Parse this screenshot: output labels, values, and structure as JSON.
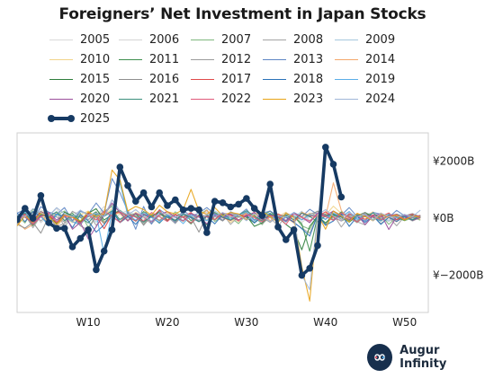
{
  "title": "Foreigners’ Net Investment in Japan Stocks",
  "brand": {
    "name": "Augur Infinity",
    "logo_icon": "infinity-icon"
  },
  "chart_data": {
    "type": "line",
    "title": "Foreigners’ Net Investment in Japan Stocks",
    "xlabel": "",
    "ylabel": "",
    "x_range": [
      1,
      53
    ],
    "ylim": [
      -3300,
      3000
    ],
    "x_ticks": [
      {
        "value": 10,
        "label": "W10"
      },
      {
        "value": 20,
        "label": "W20"
      },
      {
        "value": 30,
        "label": "W30"
      },
      {
        "value": 40,
        "label": "W40"
      },
      {
        "value": 50,
        "label": "W50"
      }
    ],
    "y_ticks": [
      {
        "value": 2000,
        "label": "¥2000B"
      },
      {
        "value": 0,
        "label": "¥0B"
      },
      {
        "value": -2000,
        "label": "¥−2000B"
      }
    ],
    "y_axis_position": "right",
    "grid": false,
    "legend_position": "top",
    "legend_columns": 5,
    "highlight_series": "2025",
    "series": [
      {
        "name": "2005",
        "color": "#d9d9d9",
        "values": [
          120,
          260,
          -90,
          300,
          150,
          40,
          -80,
          220,
          180,
          -60,
          90,
          310,
          140,
          -40,
          260,
          120,
          -30,
          180,
          70,
          240,
          -50,
          90,
          130,
          -70,
          200,
          60,
          -20,
          150,
          40,
          230,
          80,
          -60,
          110,
          170,
          30,
          -90,
          60,
          140,
          -10,
          200,
          90,
          40,
          250,
          -30,
          120,
          70,
          180,
          -50,
          100,
          60,
          20,
          110
        ]
      },
      {
        "name": "2006",
        "color": "#d4d4d4",
        "values": [
          -100,
          180,
          220,
          -150,
          90,
          350,
          -60,
          100,
          -200,
          140,
          60,
          420,
          -80,
          160,
          280,
          -120,
          70,
          30,
          190,
          -90,
          140,
          60,
          -160,
          90,
          230,
          -40,
          120,
          -80,
          50,
          190,
          -130,
          80,
          20,
          160,
          -60,
          110,
          -140,
          70,
          180,
          -30,
          260,
          -90,
          40,
          150,
          -70,
          100,
          30,
          -110,
          60,
          140,
          -20,
          80
        ]
      },
      {
        "name": "2007",
        "color": "#7fb77e",
        "values": [
          80,
          -160,
          320,
          140,
          -240,
          110,
          260,
          -90,
          180,
          -310,
          60,
          240,
          420,
          -130,
          190,
          80,
          -200,
          150,
          60,
          -90,
          230,
          40,
          -150,
          120,
          300,
          -110,
          90,
          30,
          -180,
          140,
          70,
          -220,
          160,
          40,
          -120,
          90,
          -260,
          -380,
          110,
          -200,
          60,
          -90,
          30,
          -150,
          80,
          -40,
          120,
          -210,
          50,
          -80,
          20,
          -60
        ]
      },
      {
        "name": "2008",
        "color": "#a3a3a3",
        "values": [
          -250,
          120,
          -330,
          90,
          -180,
          210,
          -290,
          60,
          -120,
          170,
          -240,
          80,
          260,
          -150,
          40,
          190,
          -200,
          110,
          -90,
          60,
          -180,
          140,
          30,
          -110,
          90,
          -60,
          160,
          -210,
          70,
          -40,
          120,
          -190,
          50,
          -280,
          90,
          -160,
          -340,
          -520,
          80,
          -240,
          140,
          -300,
          60,
          -120,
          -230,
          90,
          -180,
          40,
          -260,
          70,
          -90,
          30
        ]
      },
      {
        "name": "2009",
        "color": "#a5c8dd",
        "values": [
          -190,
          80,
          -140,
          220,
          60,
          -100,
          170,
          -60,
          240,
          110,
          -130,
          70,
          190,
          280,
          -40,
          150,
          80,
          -120,
          210,
          60,
          130,
          -70,
          180,
          40,
          -90,
          260,
          110,
          -30,
          140,
          70,
          -60,
          200,
          90,
          -110,
          160,
          30,
          250,
          -80,
          140,
          60,
          -40,
          180,
          90,
          -20,
          130,
          210,
          60,
          -90,
          150,
          40,
          120,
          70
        ]
      },
      {
        "name": "2010",
        "color": "#f2d48a",
        "values": [
          60,
          -120,
          230,
          90,
          -60,
          180,
          40,
          -150,
          120,
          260,
          -40,
          90,
          340,
          150,
          -90,
          220,
          60,
          130,
          -70,
          190,
          40,
          -110,
          160,
          80,
          -50,
          210,
          100,
          -140,
          70,
          180,
          30,
          -90,
          140,
          60,
          220,
          -80,
          40,
          190,
          -60,
          110,
          430,
          170,
          -30,
          120,
          60,
          230,
          -90,
          80,
          150,
          -40,
          90,
          50
        ]
      },
      {
        "name": "2011",
        "color": "#3f8f4f",
        "values": [
          90,
          150,
          -80,
          240,
          120,
          -200,
          70,
          180,
          -110,
          60,
          230,
          -140,
          80,
          1350,
          160,
          -90,
          240,
          60,
          -170,
          130,
          40,
          210,
          -80,
          110,
          -230,
          70,
          190,
          -60,
          140,
          30,
          -150,
          90,
          260,
          -40,
          120,
          60,
          -190,
          -1150,
          80,
          150,
          -60,
          230,
          40,
          -110,
          180,
          70,
          -90,
          140,
          20,
          -70,
          110,
          40
        ]
      },
      {
        "name": "2012",
        "color": "#9b9b9b",
        "values": [
          -60,
          140,
          210,
          -90,
          160,
          60,
          -130,
          250,
          80,
          -40,
          190,
          120,
          480,
          230,
          -80,
          150,
          40,
          -190,
          110,
          70,
          -60,
          180,
          30,
          -120,
          90,
          140,
          -70,
          210,
          60,
          -30,
          170,
          40,
          -140,
          80,
          120,
          -60,
          190,
          50,
          260,
          110,
          -40,
          160,
          80,
          -90,
          200,
          60,
          30,
          140,
          -50,
          90,
          170,
          40
        ]
      },
      {
        "name": "2013",
        "color": "#5f86c4",
        "values": [
          180,
          320,
          -60,
          410,
          220,
          140,
          380,
          -90,
          260,
          150,
          540,
          180,
          1400,
          900,
          260,
          -380,
          420,
          -200,
          310,
          120,
          -150,
          280,
          70,
          190,
          380,
          140,
          -80,
          230,
          110,
          330,
          -60,
          180,
          260,
          90,
          -120,
          210,
          60,
          320,
          140,
          -40,
          250,
          110,
          380,
          60,
          -90,
          210,
          150,
          40,
          280,
          90,
          130,
          60
        ]
      },
      {
        "name": "2014",
        "color": "#f4a86b",
        "values": [
          -140,
          -380,
          -220,
          90,
          -160,
          -290,
          60,
          -110,
          -230,
          120,
          40,
          -150,
          90,
          210,
          -70,
          160,
          40,
          -120,
          110,
          230,
          60,
          -90,
          180,
          40,
          290,
          -50,
          140,
          90,
          -110,
          200,
          60,
          170,
          -80,
          130,
          40,
          -160,
          220,
          90,
          140,
          60,
          1250,
          280,
          -40,
          160,
          90,
          -70,
          190,
          40,
          -120,
          110,
          60,
          -30
        ]
      },
      {
        "name": "2015",
        "color": "#2e7d3b",
        "values": [
          -90,
          160,
          -250,
          110,
          60,
          -180,
          220,
          90,
          -140,
          180,
          340,
          -60,
          130,
          280,
          90,
          160,
          -110,
          60,
          230,
          -80,
          140,
          40,
          -190,
          110,
          70,
          -40,
          180,
          130,
          -60,
          90,
          -280,
          -160,
          120,
          40,
          -210,
          -420,
          -1100,
          -280,
          80,
          -160,
          110,
          60,
          -130,
          90,
          210,
          40,
          -90,
          130,
          60,
          -40,
          110,
          80
        ]
      },
      {
        "name": "2016",
        "color": "#8f8f8f",
        "values": [
          -210,
          -340,
          -140,
          -520,
          60,
          -290,
          -180,
          90,
          -260,
          -410,
          120,
          -190,
          60,
          -130,
          80,
          160,
          -240,
          90,
          -70,
          140,
          -120,
          60,
          30,
          -480,
          110,
          70,
          -90,
          160,
          40,
          220,
          -60,
          130,
          80,
          -110,
          190,
          60,
          -40,
          150,
          240,
          90,
          180,
          -30,
          120,
          60,
          210,
          -80,
          140,
          40,
          -60,
          90,
          20,
          60
        ]
      },
      {
        "name": "2017",
        "color": "#e04a4a",
        "values": [
          40,
          160,
          -80,
          230,
          110,
          -140,
          90,
          60,
          -190,
          180,
          70,
          -360,
          130,
          240,
          60,
          -90,
          150,
          30,
          290,
          -60,
          120,
          40,
          210,
          -110,
          80,
          170,
          30,
          -70,
          140,
          60,
          220,
          -40,
          90,
          150,
          30,
          -120,
          180,
          90,
          60,
          230,
          40,
          -90,
          160,
          70,
          -30,
          120,
          60,
          190,
          -50,
          80,
          140,
          30
        ]
      },
      {
        "name": "2018",
        "color": "#2a72b8",
        "values": [
          190,
          -120,
          240,
          60,
          -210,
          150,
          80,
          -330,
          130,
          -90,
          -480,
          -230,
          260,
          -140,
          70,
          -210,
          120,
          40,
          -150,
          90,
          -80,
          160,
          30,
          -110,
          60,
          -190,
          140,
          40,
          -70,
          110,
          -160,
          60,
          180,
          -90,
          40,
          -130,
          -360,
          -620,
          120,
          -240,
          -90,
          160,
          -280,
          60,
          -140,
          90,
          -210,
          40,
          -110,
          70,
          -50,
          30
        ]
      },
      {
        "name": "2019",
        "color": "#5aaee8",
        "values": [
          -110,
          230,
          -180,
          80,
          -270,
          140,
          60,
          -120,
          -210,
          90,
          160,
          -1250,
          240,
          1250,
          110,
          -60,
          190,
          40,
          -140,
          110,
          60,
          -180,
          130,
          40,
          -70,
          160,
          90,
          -40,
          120,
          230,
          -80,
          70,
          150,
          -110,
          40,
          190,
          -60,
          120,
          80,
          -30,
          170,
          60,
          240,
          -40,
          110,
          60,
          -90,
          150,
          30,
          90,
          40,
          60
        ]
      },
      {
        "name": "2020",
        "color": "#9b4f9b",
        "values": [
          120,
          40,
          -160,
          90,
          210,
          -60,
          140,
          -380,
          -140,
          -720,
          -290,
          160,
          540,
          210,
          -90,
          180,
          60,
          -120,
          130,
          240,
          40,
          -90,
          170,
          60,
          -190,
          110,
          30,
          150,
          -60,
          90,
          210,
          -40,
          130,
          60,
          -80,
          170,
          40,
          -150,
          190,
          90,
          260,
          60,
          -40,
          140,
          -220,
          90,
          160,
          -390,
          60,
          110,
          -70,
          40
        ]
      },
      {
        "name": "2021",
        "color": "#3c8f7d",
        "values": [
          70,
          190,
          -110,
          140,
          60,
          230,
          -80,
          110,
          40,
          -160,
          150,
          80,
          270,
          -40,
          130,
          60,
          -130,
          90,
          180,
          30,
          -70,
          140,
          60,
          -110,
          90,
          210,
          40,
          -60,
          120,
          270,
          80,
          -90,
          160,
          40,
          110,
          -50,
          190,
          70,
          -120,
          90,
          150,
          40,
          -80,
          120,
          60,
          190,
          -30,
          90,
          150,
          40,
          -60,
          110
        ]
      },
      {
        "name": "2022",
        "color": "#e05a7a",
        "values": [
          -90,
          140,
          -210,
          60,
          180,
          -130,
          90,
          40,
          -170,
          120,
          -60,
          250,
          80,
          -140,
          160,
          40,
          -90,
          210,
          60,
          -110,
          140,
          30,
          -160,
          90,
          60,
          -40,
          190,
          110,
          -80,
          140,
          30,
          -120,
          90,
          60,
          -210,
          170,
          40,
          -90,
          130,
          60,
          -70,
          190,
          40,
          -130,
          110,
          60,
          -50,
          90,
          140,
          -20,
          60,
          100
        ]
      },
      {
        "name": "2023",
        "color": "#e8a317",
        "values": [
          -260,
          90,
          -140,
          180,
          60,
          -210,
          120,
          40,
          -90,
          230,
          70,
          160,
          1700,
          1350,
          260,
          420,
          310,
          110,
          460,
          230,
          160,
          310,
          1020,
          260,
          140,
          380,
          90,
          210,
          160,
          -60,
          120,
          230,
          70,
          -140,
          180,
          40,
          -1700,
          -2900,
          130,
          -380,
          260,
          90,
          -120,
          180,
          60,
          -80,
          150,
          40,
          110,
          -60,
          90,
          40
        ]
      },
      {
        "name": "2024",
        "color": "#9fb6d8",
        "values": [
          120,
          60,
          340,
          210,
          90,
          380,
          160,
          60,
          290,
          110,
          180,
          60,
          650,
          260,
          120,
          310,
          60,
          -90,
          210,
          140,
          30,
          180,
          90,
          -60,
          140,
          60,
          210,
          30,
          120,
          -80,
          160,
          60,
          -110,
          90,
          40,
          210,
          -2000,
          -2500,
          120,
          310,
          80,
          -90,
          210,
          60,
          140,
          -70,
          180,
          60,
          30,
          140,
          60,
          290
        ]
      },
      {
        "name": "2025",
        "color": "#163a63",
        "values": [
          -50,
          350,
          0,
          800,
          -150,
          -350,
          -350,
          -1000,
          -700,
          -400,
          -1800,
          -1150,
          -400,
          1800,
          1150,
          600,
          900,
          400,
          900,
          450,
          650,
          300,
          350,
          300,
          -500,
          600,
          550,
          400,
          500,
          700,
          350,
          100,
          1200,
          -300,
          -750,
          -400,
          -2000,
          -1750,
          -950,
          2500,
          1900,
          750
        ]
      }
    ]
  }
}
